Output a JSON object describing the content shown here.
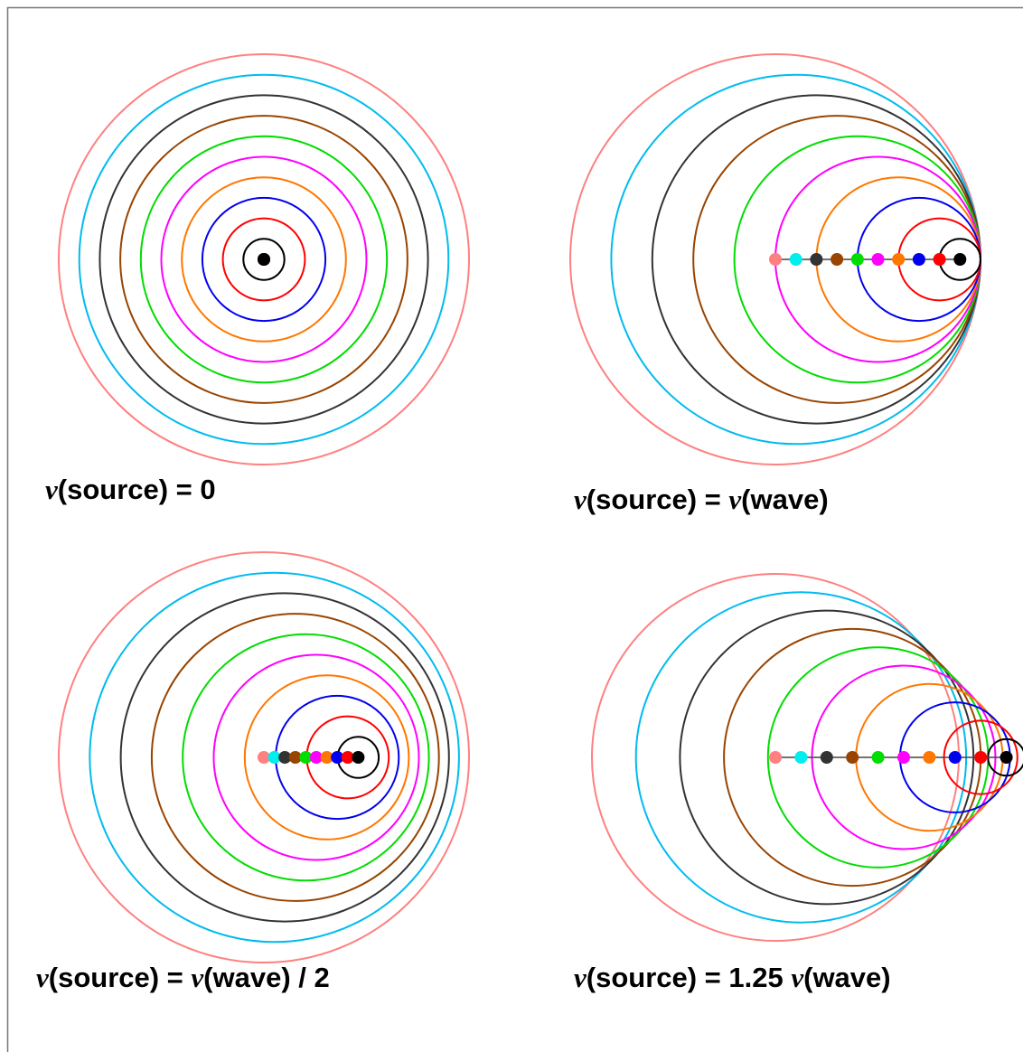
{
  "panels": [
    {
      "label": [
        {
          "text": "v",
          "var": true
        },
        {
          "text": "(source) = 0"
        }
      ]
    },
    {
      "label": [
        {
          "text": "v",
          "var": true
        },
        {
          "text": "(source) = "
        },
        {
          "text": "v",
          "var": true
        },
        {
          "text": "(wave)"
        }
      ]
    },
    {
      "label": [
        {
          "text": "v",
          "var": true
        },
        {
          "text": "(source) = "
        },
        {
          "text": "v",
          "var": true
        },
        {
          "text": "(wave) / 2"
        }
      ]
    },
    {
      "label": [
        {
          "text": "v",
          "var": true
        },
        {
          "text": "(source) = 1.25 "
        },
        {
          "text": "v",
          "var": true
        },
        {
          "text": "(wave)"
        }
      ]
    }
  ]
}
